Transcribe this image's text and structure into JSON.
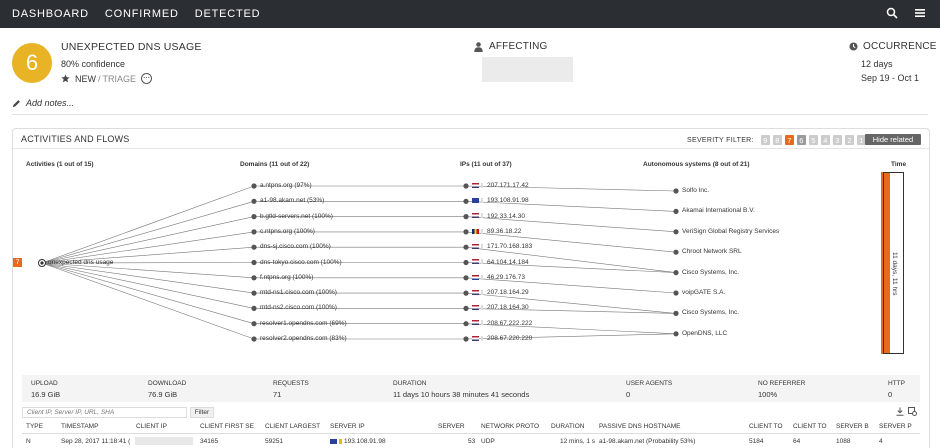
{
  "nav": {
    "tabs": [
      "DASHBOARD",
      "CONFIRMED",
      "DETECTED"
    ],
    "icons": [
      "search-icon",
      "menu-icon"
    ]
  },
  "incident": {
    "score": "6",
    "score_color": "#e8b324",
    "title": "UNEXPECTED DNS USAGE",
    "confidence": "80% confidence",
    "status_new": "NEW",
    "status_sep": "/",
    "status_triage": "TRIAGE",
    "affecting_label": "AFFECTING",
    "occurrence_label": "OCCURRENCE",
    "occurrence_days": "12 days",
    "occurrence_range": "Sep 19 - Oct 1"
  },
  "notes": {
    "label": "Add notes..."
  },
  "panel": {
    "title": "ACTIVITIES AND FLOWS",
    "severity_label": "SEVERITY FILTER:",
    "severity_levels": [
      "9",
      "8",
      "7",
      "6",
      "5",
      "4",
      "3",
      "2",
      "1"
    ],
    "severity_active": "7",
    "severity_active2": "6",
    "accent_color": "#e86a1f",
    "hide_related": "Hide related"
  },
  "flows": {
    "col_activities": "Activities (1 out of 15)",
    "col_domains": "Domains (11 out of 22)",
    "col_ips": "IPs (11 out of 37)",
    "col_as": "Autonomous systems (8 out of 21)",
    "col_time": "Time",
    "activity": {
      "badge": "7",
      "label": "unexpected dns usage"
    },
    "domains": [
      "a.ntpns.org (97%)",
      "a1-98.akam.net (53%)",
      "b.gtld-servers.net (100%)",
      "c.ntpns.org (100%)",
      "dns-sj.cisco.com (100%)",
      "dns-tokyo.cisco.com (100%)",
      "f.ntpns.org (100%)",
      "mtd-ns1.cisco.com (100%)",
      "mtd-ns2.cisco.com (100%)",
      "resolver1.opendns.com (69%)",
      "resolver2.opendns.com (83%)"
    ],
    "ips": [
      {
        "ip": "207.171.17.42",
        "flag": "us"
      },
      {
        "ip": "193.108.91.98",
        "flag": "eu"
      },
      {
        "ip": "192.33.14.30",
        "flag": "us"
      },
      {
        "ip": "89.36.18.22",
        "flag": "ro"
      },
      {
        "ip": "171.70.168.183",
        "flag": "us"
      },
      {
        "ip": "64.104.14.184",
        "flag": "us"
      },
      {
        "ip": "46.29.176.73",
        "flag": "nl"
      },
      {
        "ip": "207.18.164.29",
        "flag": "us"
      },
      {
        "ip": "207.18.164.30",
        "flag": "us"
      },
      {
        "ip": "208.67.222.222",
        "flag": "us"
      },
      {
        "ip": "208.67.220.220",
        "flag": "us"
      }
    ],
    "as": [
      "Solfo Inc.",
      "Akamai International B.V.",
      "VeriSign Global Registry Services",
      "Chroot Network SRL",
      "Cisco Systems, Inc.",
      "voipGATE S.A.",
      "Cisco Systems, Inc.",
      "OpenDNS, LLC"
    ],
    "ip_to_as": [
      0,
      1,
      2,
      3,
      4,
      4,
      5,
      6,
      6,
      7,
      7
    ],
    "time_label": "11 days, 11 hrs"
  },
  "stats": [
    {
      "label": "UPLOAD",
      "value": "16.9 GiB"
    },
    {
      "label": "DOWNLOAD",
      "value": "76.9 GiB"
    },
    {
      "label": "REQUESTS",
      "value": "71"
    },
    {
      "label": "DURATION",
      "value": "11 days 10 hours 38 minutes 41 seconds"
    },
    {
      "label": "USER AGENTS",
      "value": "0"
    },
    {
      "label": "NO REFERRER",
      "value": "100%"
    },
    {
      "label": "HTTP",
      "value": "0"
    }
  ],
  "table": {
    "filter_placeholder": "Client IP, Server IP, URL, SHA",
    "filter_button": "Filter",
    "headers": [
      "TYPE",
      "TIMESTAMP",
      "CLIENT IP",
      "CLIENT FIRST SE",
      "CLIENT LARGEST",
      "SERVER IP",
      "SERVER",
      "NETWORK PROTO",
      "DURATION",
      "PASSIVE DNS HOSTNAME",
      "CLIENT TO",
      "CLIENT TO",
      "SERVER B",
      "SERVER P"
    ],
    "row": {
      "type": "N",
      "timestamp": "Sep 28, 2017 11:18:41 (",
      "client_first": "34165",
      "client_largest": "59251",
      "server_ip": "193.108.91.98",
      "server": "53",
      "proto": "UDP",
      "duration": "12 mins, 1 s",
      "hostname": "a1-98.akam.net (Probability 53%)",
      "client_to1": "5184",
      "client_to2": "64",
      "server_b": "1088",
      "server_p": "4"
    }
  }
}
